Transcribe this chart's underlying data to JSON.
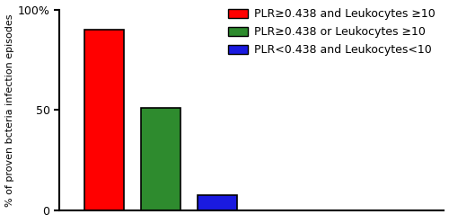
{
  "values": [
    90,
    51,
    8
  ],
  "bar_colors": [
    "#FF0000",
    "#2E8B2E",
    "#1A1AE0"
  ],
  "bar_width": 0.35,
  "bar_positions": [
    0.5,
    1.0,
    1.5
  ],
  "xlim": [
    0.1,
    3.5
  ],
  "ylabel": "% of proven bcteria infection episodes",
  "ylim": [
    0,
    100
  ],
  "yticks": [
    0,
    50,
    100
  ],
  "ytick_labels": [
    "0",
    "50",
    "100%"
  ],
  "legend_labels": [
    "PLR≥0.438 and Leukocytes ≥10",
    "PLR≥0.438 or Leukocytes ≥10",
    "PLR<0.438 and Leukocytes<10"
  ],
  "legend_colors": [
    "#FF0000",
    "#2E8B2E",
    "#1A1AE0"
  ],
  "bar_edge_color": "#000000",
  "bar_edge_width": 1.2,
  "background_color": "#ffffff",
  "ylabel_fontsize": 8,
  "legend_fontsize": 9,
  "tick_fontsize": 9
}
